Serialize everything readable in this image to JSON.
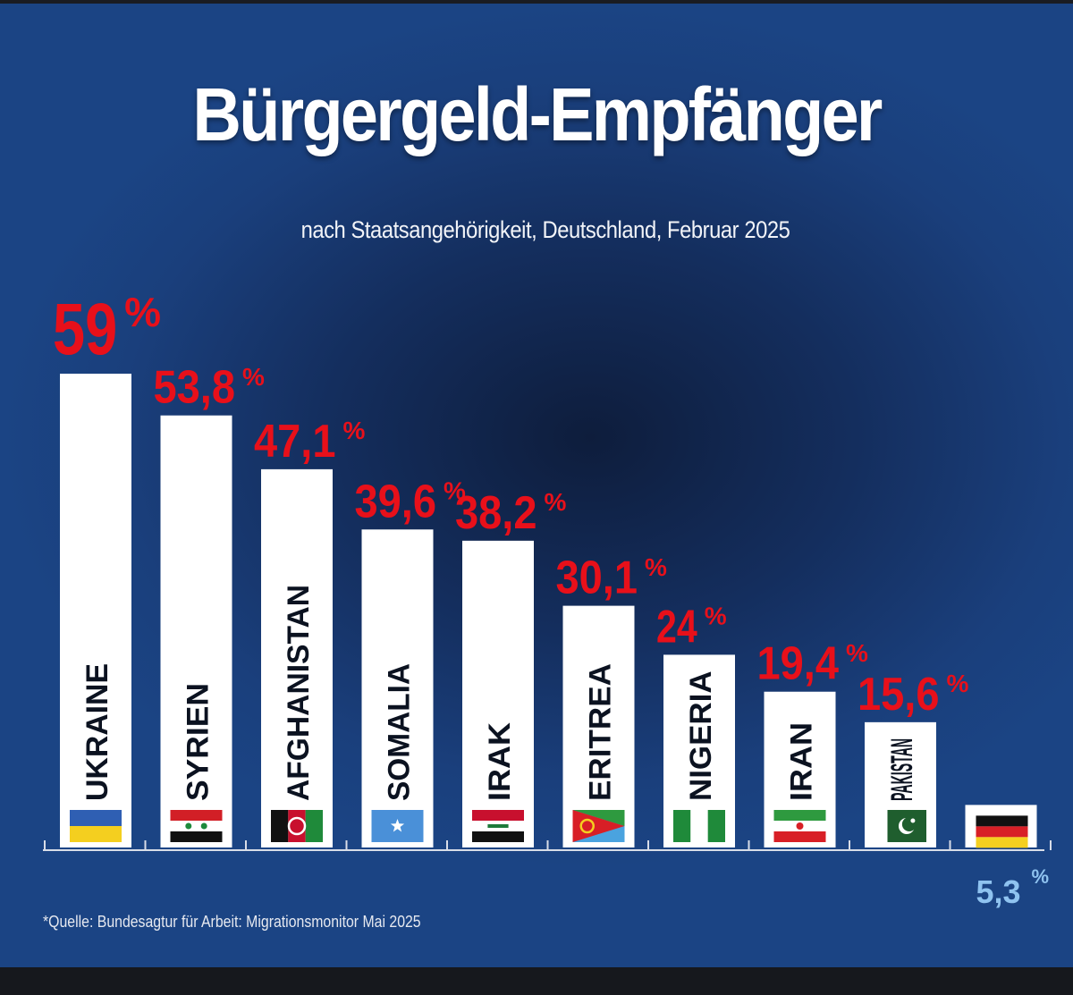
{
  "title": "Bürgergeld-Empfänger",
  "subtitle": "nach Staatsangehörigkeit, Deutschland, Februar 2025",
  "source": "*Quelle: Bundesagtur für Arbeit: Migrationsmonitor Mai 2025",
  "colors": {
    "bar": "#ffffff",
    "value_highlight": "#e8101a",
    "value_reference": "#8fc3f0",
    "label": "#0b1220",
    "axis": "#d8dde8"
  },
  "chart_data": {
    "type": "bar",
    "title": "Bürgergeld-Empfänger",
    "subtitle": "nach Staatsangehörigkeit, Deutschland, Februar 2025",
    "categories": [
      "UKRAINE",
      "SYRIEN",
      "AFGHANISTAN",
      "SOMALIA",
      "IRAK",
      "ERITREA",
      "NIGERIA",
      "IRAN",
      "PAKISTAN",
      "DEUTSCHLAND"
    ],
    "values": [
      59,
      53.8,
      47.1,
      39.6,
      38.2,
      30.1,
      24,
      19.4,
      15.6,
      5.3
    ],
    "value_labels": [
      "59",
      "53,8",
      "47,1",
      "39,6",
      "38,2",
      "30,1",
      "24",
      "19,4",
      "15,6",
      "5,3"
    ],
    "unit": "%",
    "flags": [
      "ukraine-flag",
      "syria-flag",
      "afghanistan-flag",
      "somalia-flag",
      "iraq-flag",
      "eritrea-flag",
      "nigeria-flag",
      "iran-flag",
      "pakistan-flag",
      "germany-flag"
    ],
    "xlabel": "",
    "ylabel": "",
    "ylim": [
      0,
      59
    ],
    "grid": false,
    "legend": "none"
  }
}
